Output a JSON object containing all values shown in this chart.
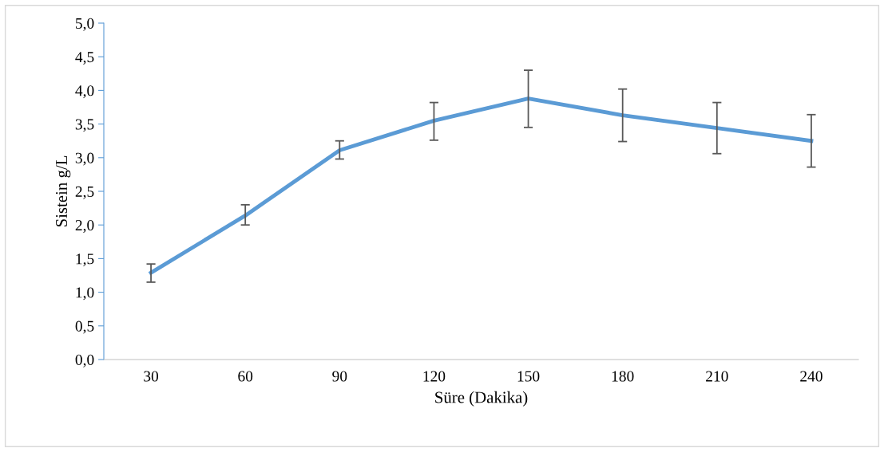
{
  "chart_data": {
    "type": "line",
    "xlabel": "Süre (Dakika)",
    "ylabel": "Sistein g/L",
    "categories": [
      "30",
      "60",
      "90",
      "120",
      "150",
      "180",
      "210",
      "240"
    ],
    "series": [
      {
        "color": "#5b9bd5",
        "values": [
          1.29,
          2.14,
          3.11,
          3.55,
          3.88,
          3.63,
          3.44,
          3.25
        ],
        "errors": [
          [
            1.15,
            1.42
          ],
          [
            2.0,
            2.3
          ],
          [
            2.98,
            3.25
          ],
          [
            3.26,
            3.82
          ],
          [
            3.45,
            4.3
          ],
          [
            3.24,
            4.02
          ],
          [
            3.06,
            3.82
          ],
          [
            2.86,
            3.64
          ]
        ]
      }
    ],
    "ylim": [
      0,
      5
    ],
    "yticks": [
      {
        "value": 0,
        "label": "0,0"
      },
      {
        "value": 0.5,
        "label": "0,5"
      },
      {
        "value": 1,
        "label": "1,0"
      },
      {
        "value": 1.5,
        "label": "1,5"
      },
      {
        "value": 2,
        "label": "2,0"
      },
      {
        "value": 2.5,
        "label": "2,5"
      },
      {
        "value": 3,
        "label": "3,0"
      },
      {
        "value": 3.5,
        "label": "3,5"
      },
      {
        "value": 4,
        "label": "4,0"
      },
      {
        "value": 4.5,
        "label": "4,5"
      },
      {
        "value": 5,
        "label": "5,0"
      }
    ],
    "grid": false,
    "marker": "none",
    "line_style": "solid"
  }
}
